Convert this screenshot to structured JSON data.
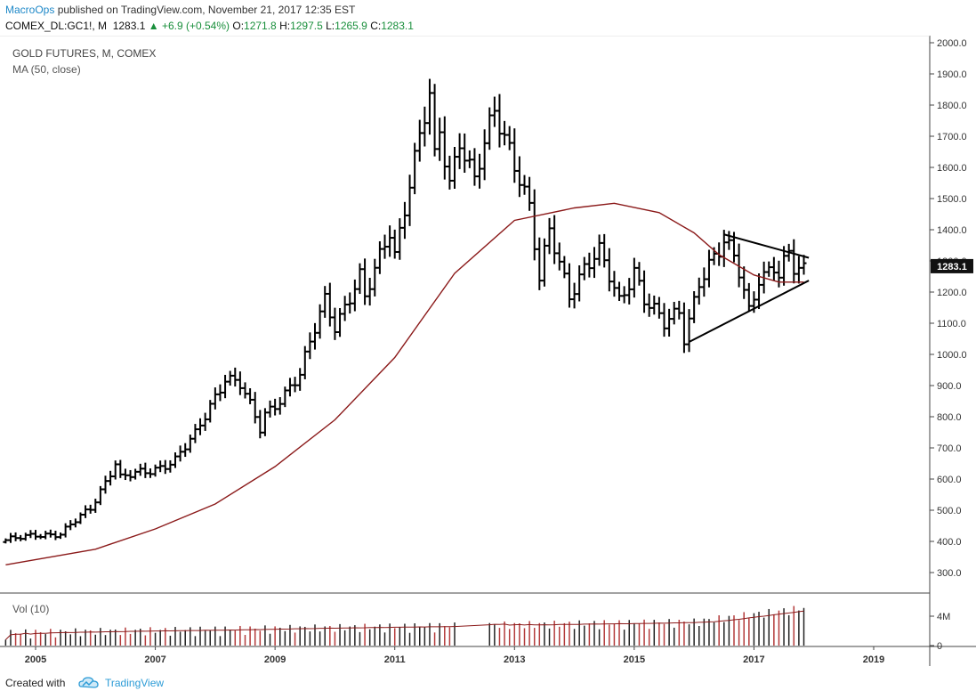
{
  "header": {
    "author": "MacroOps",
    "published_text": " published on TradingView.com, November 21, 2017 12:35 EST",
    "symbol": "COMEX_DL:GC1!, M",
    "price": "1283.1",
    "change": "▲ +6.9 (+0.54%)",
    "open_label": "O:",
    "open": "1271.8",
    "high_label": "H:",
    "high": "1297.5",
    "low_label": "L:",
    "low": "1265.9",
    "close_label": "C:",
    "close": "1283.1"
  },
  "chart_data": {
    "type": "ohlc",
    "title": "GOLD FUTURES, M, COMEX",
    "indicator": "MA (50, close)",
    "volume_label": "Vol (10)",
    "ylim": [
      250,
      2010
    ],
    "yticks": [
      "2000.0",
      "1900.0",
      "1800.0",
      "1700.0",
      "1600.0",
      "1500.0",
      "1400.0",
      "1300.0",
      "1200.0",
      "1100.0",
      "1000.0",
      "900.0",
      "800.0",
      "700.0",
      "600.0",
      "500.0",
      "400.0",
      "300.0"
    ],
    "xticks": [
      "2005",
      "2007",
      "2009",
      "2011",
      "2013",
      "2015",
      "2017",
      "2019"
    ],
    "vol_ticks": [
      "4M",
      "0"
    ],
    "last_price_label": "1283.1",
    "anchors": [
      [
        "2004-07",
        400
      ],
      [
        "2005-01",
        425
      ],
      [
        "2005-06",
        420
      ],
      [
        "2005-12",
        510
      ],
      [
        "2006-05",
        650
      ],
      [
        "2006-06",
        600
      ],
      [
        "2006-12",
        630
      ],
      [
        "2007-05",
        660
      ],
      [
        "2007-09",
        740
      ],
      [
        "2007-12",
        840
      ],
      [
        "2008-03",
        930
      ],
      [
        "2008-06",
        900
      ],
      [
        "2008-10",
        760
      ],
      [
        "2008-11",
        810
      ],
      [
        "2009-06",
        930
      ],
      [
        "2009-11",
        1180
      ],
      [
        "2010-01",
        1100
      ],
      [
        "2010-06",
        1240
      ],
      [
        "2010-07",
        1170
      ],
      [
        "2010-12",
        1410
      ],
      [
        "2011-01",
        1330
      ],
      [
        "2011-04",
        1550
      ],
      [
        "2011-08",
        1820
      ],
      [
        "2011-09",
        1620
      ],
      [
        "2011-10",
        1720
      ],
      [
        "2011-12",
        1560
      ],
      [
        "2012-02",
        1700
      ],
      [
        "2012-05",
        1550
      ],
      [
        "2012-09",
        1775
      ],
      [
        "2012-12",
        1670
      ],
      [
        "2013-02",
        1580
      ],
      [
        "2013-04",
        1470
      ],
      [
        "2013-06",
        1230
      ],
      [
        "2013-08",
        1390
      ],
      [
        "2013-12",
        1200
      ],
      [
        "2014-03",
        1280
      ],
      [
        "2014-06",
        1320
      ],
      [
        "2014-10",
        1170
      ],
      [
        "2015-01",
        1280
      ],
      [
        "2015-03",
        1180
      ],
      [
        "2015-07",
        1090
      ],
      [
        "2015-10",
        1140
      ],
      [
        "2015-11",
        1060
      ],
      [
        "2016-02",
        1240
      ],
      [
        "2016-06",
        1320
      ],
      [
        "2016-07",
        1350
      ],
      [
        "2016-09",
        1315
      ],
      [
        "2016-10",
        1275
      ],
      [
        "2016-12",
        1150
      ],
      [
        "2017-02",
        1250
      ],
      [
        "2017-03",
        1250
      ],
      [
        "2017-05",
        1270
      ],
      [
        "2017-06",
        1240
      ],
      [
        "2017-08",
        1320
      ],
      [
        "2017-09",
        1280
      ],
      [
        "2017-11",
        1283
      ]
    ],
    "ma50": [
      [
        "2004-07",
        325
      ],
      [
        "2006-01",
        375
      ],
      [
        "2007-01",
        440
      ],
      [
        "2008-01",
        520
      ],
      [
        "2009-01",
        640
      ],
      [
        "2010-01",
        790
      ],
      [
        "2011-01",
        990
      ],
      [
        "2012-01",
        1260
      ],
      [
        "2013-01",
        1430
      ],
      [
        "2014-01",
        1470
      ],
      [
        "2014-09",
        1485
      ],
      [
        "2015-06",
        1455
      ],
      [
        "2016-01",
        1390
      ],
      [
        "2016-06",
        1320
      ],
      [
        "2017-01",
        1255
      ],
      [
        "2017-06",
        1232
      ],
      [
        "2017-11",
        1232
      ]
    ],
    "triangle": {
      "upper": [
        [
          "2016-07",
          1385
        ],
        [
          "2017-12",
          1310
        ]
      ],
      "lower": [
        [
          "2015-12",
          1040
        ],
        [
          "2017-12",
          1237
        ]
      ]
    },
    "volume_gaps": [
      [
        "2012-02",
        "2012-07"
      ]
    ]
  },
  "footer": {
    "created_with": "Created with",
    "brand": "TradingView"
  },
  "colors": {
    "bars": "#000000",
    "ma": "#8b1a1a",
    "volume_up": "#222222",
    "volume_down": "#b33a3a",
    "brand": "#1e88c8"
  }
}
